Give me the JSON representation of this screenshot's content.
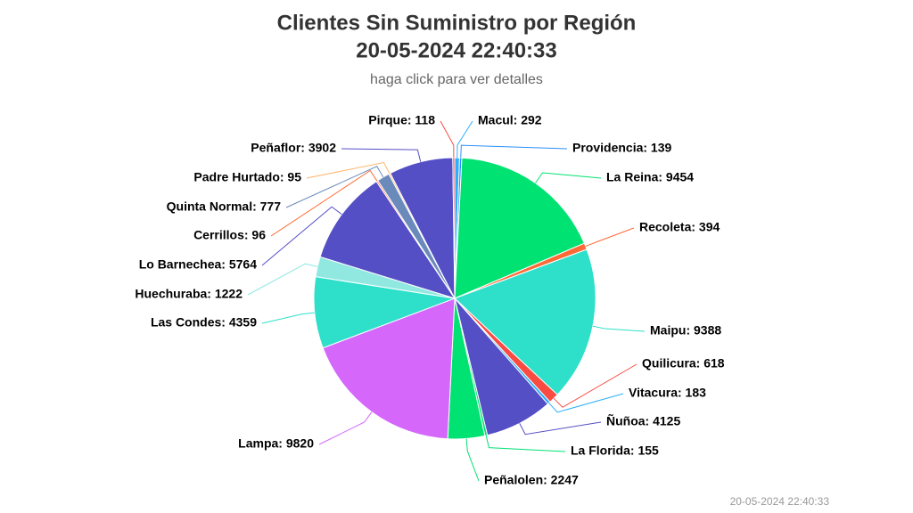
{
  "chart_data": {
    "type": "pie",
    "title": [
      "Clientes Sin Suministro por Región",
      "20-05-2024 22:40:33"
    ],
    "subtitle": "haga click para ver detalles",
    "credits": "20-05-2024 22:40:33",
    "values": [
      292,
      139,
      9454,
      394,
      9388,
      618,
      183,
      4125,
      155,
      2247,
      9820,
      4359,
      1222,
      5764,
      96,
      777,
      95,
      3902,
      118
    ],
    "value_labels": [
      "Macul: 292",
      "Providencia: 139",
      "La Reina: 9454",
      "Recoleta: 394",
      "Maipu: 9388",
      "Quilicura: 618",
      "Vitacura: 183",
      "Ñuñoa: 4125",
      "La Florida: 155",
      "Peñalolen: 2247",
      "Lampa: 9820",
      "Las Condes: 4359",
      "Huechuraba: 1222",
      "Lo Barnechea: 5764",
      "Cerrillos: 96",
      "Quinta Normal: 777",
      "Padre Hurtado: 95",
      "Peñaflor: 3902",
      "Pirque: 118"
    ],
    "colors": [
      "#2caffe",
      "#2c8ffe",
      "#00e272",
      "#fe6a35",
      "#2ee0ca",
      "#fa4b42",
      "#2caffe",
      "#544fc5",
      "#00e272",
      "#00e272",
      "#d568fb",
      "#2ee0ca",
      "#91e8e1",
      "#544fc5",
      "#fe6a35",
      "#6b8abc",
      "#feb56a",
      "#544fc5",
      "#fa4b42"
    ]
  }
}
